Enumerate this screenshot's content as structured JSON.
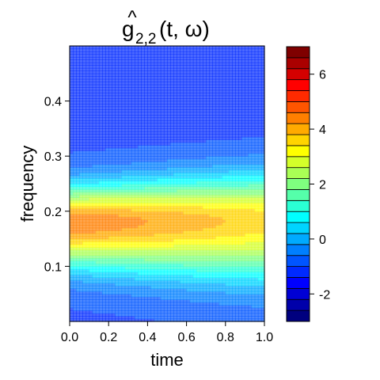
{
  "chart_data": {
    "type": "heatmap",
    "subtype": "filled-contour",
    "title_base": "g",
    "title_accent": "^",
    "title_sub": "2,2",
    "title_args": "(t, ω)",
    "xlabel": "time",
    "ylabel": "frequency",
    "xlim": [
      0,
      1
    ],
    "ylim": [
      0,
      0.5
    ],
    "x_ticks": [
      "0.0",
      "0.2",
      "0.4",
      "0.6",
      "0.8",
      "1.0"
    ],
    "x_tick_values": [
      0,
      0.2,
      0.4,
      0.6,
      0.8,
      1.0
    ],
    "y_ticks": [
      "0.1",
      "0.2",
      "0.3",
      "0.4"
    ],
    "y_tick_values": [
      0.1,
      0.2,
      0.3,
      0.4
    ],
    "colorbar": {
      "levels": [
        -3,
        -2.5,
        -2,
        -1.5,
        -1,
        -0.5,
        0,
        0.5,
        1,
        1.5,
        2,
        2.5,
        3,
        3.5,
        4,
        4.5,
        5,
        5.5,
        6,
        6.5,
        7
      ],
      "colors": [
        "#00007F",
        "#0000AA",
        "#0000D4",
        "#0000FF",
        "#002AFF",
        "#0055FF",
        "#007FFF",
        "#00AAFF",
        "#00D4FF",
        "#00FFFF",
        "#2AFFD4",
        "#55FFAA",
        "#7FFF7F",
        "#AAFF55",
        "#D4FF2A",
        "#FFFF00",
        "#FFD400",
        "#FFAA00",
        "#FF7F00",
        "#FF5500",
        "#FF2A00",
        "#FF0000",
        "#D40000",
        "#AA0000",
        "#7F0000"
      ],
      "tick_labels": [
        "-2",
        "0",
        "2",
        "4",
        "6"
      ],
      "tick_values": [
        -2,
        0,
        2,
        4,
        6
      ]
    },
    "surface": {
      "peak_frequency": 0.18,
      "peak_value_start": 4.6,
      "peak_value_end": 3.6,
      "background_value": -1.1,
      "top_value": -1.3,
      "fill_alpha": 0.7
    }
  }
}
